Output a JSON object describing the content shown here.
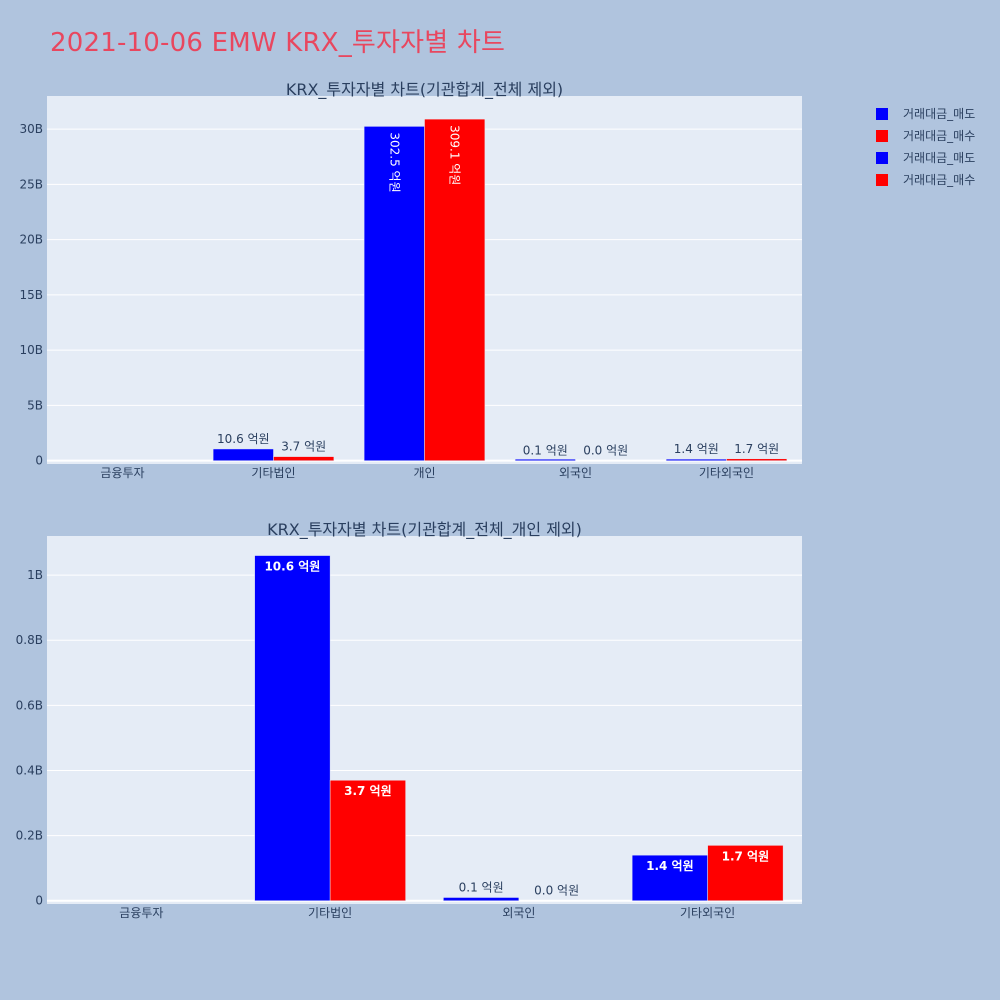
{
  "title": "2021-10-06 EMW KRX_투자자별 차트",
  "colors": {
    "sell": "#0000ff",
    "buy": "#ff0000",
    "plot_bg": "#e5ecf6",
    "page_bg": "#b0c4de",
    "title": "#e8475f"
  },
  "legend": {
    "entries": [
      "거래대금_매도",
      "거래대금_매수",
      "거래대금_매도",
      "거래대금_매수"
    ],
    "placement": "top-right"
  },
  "chart_data": [
    {
      "type": "bar",
      "title": "KRX_투자자별 차트(기관합계_전체 제외)",
      "categories": [
        "금융투자",
        "기타법인",
        "개인",
        "외국인",
        "기타외국인"
      ],
      "series": [
        {
          "name": "거래대금_매도",
          "values": [
            0,
            1060000000,
            30250000000,
            10000000,
            140000000
          ],
          "labels": [
            "",
            "10.6 억원",
            "302.5 억원",
            "0.1 억원",
            "1.4 억원"
          ]
        },
        {
          "name": "거래대금_매수",
          "values": [
            0,
            370000000,
            30910000000,
            0,
            170000000
          ],
          "labels": [
            "",
            "3.7 억원",
            "309.1 억원",
            "0.0 억원",
            "1.7 억원"
          ]
        }
      ],
      "ylim": [
        -300000000,
        33000000000
      ],
      "yticks": [
        0,
        5000000000,
        10000000000,
        15000000000,
        20000000000,
        25000000000,
        30000000000
      ],
      "ytick_labels": [
        "0",
        "5B",
        "10B",
        "15B",
        "20B",
        "25B",
        "30B"
      ],
      "grid": true
    },
    {
      "type": "bar",
      "title": "KRX_투자자별 차트(기관합계_전체_개인 제외)",
      "categories": [
        "금융투자",
        "기타법인",
        "외국인",
        "기타외국인"
      ],
      "series": [
        {
          "name": "거래대금_매도",
          "values": [
            0,
            1060000000,
            10000000,
            140000000
          ],
          "labels": [
            "",
            "10.6 억원",
            "0.1 억원",
            "1.4 억원"
          ]
        },
        {
          "name": "거래대금_매수",
          "values": [
            0,
            370000000,
            0,
            170000000
          ],
          "labels": [
            "",
            "3.7 억원",
            "0.0 억원",
            "1.7 억원"
          ]
        }
      ],
      "ylim": [
        -10000000,
        1120000000
      ],
      "yticks": [
        0,
        200000000,
        400000000,
        600000000,
        800000000,
        1000000000
      ],
      "ytick_labels": [
        "0",
        "0.2B",
        "0.4B",
        "0.6B",
        "0.8B",
        "1B"
      ],
      "grid": true
    }
  ]
}
